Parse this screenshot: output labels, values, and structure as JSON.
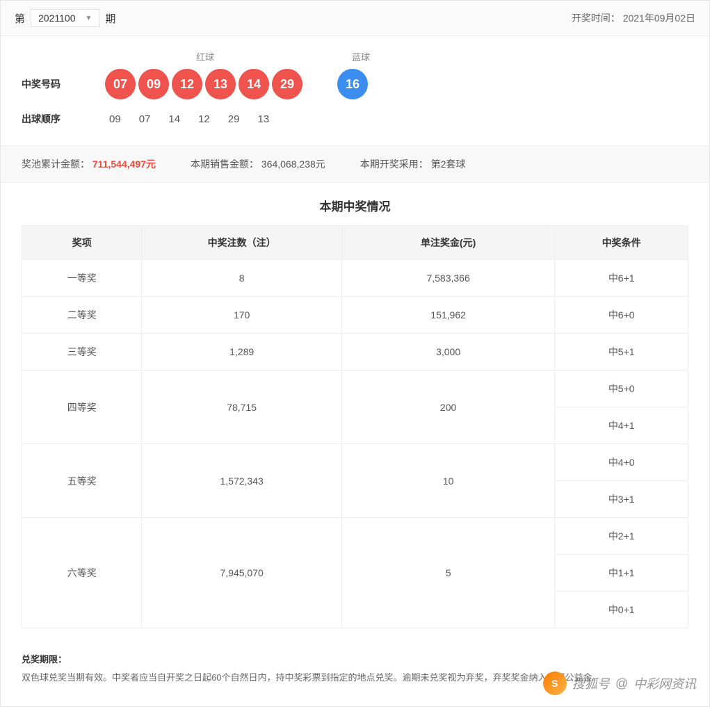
{
  "header": {
    "prefix": "第",
    "period": "2021100",
    "suffix": "期",
    "draw_time_label": "开奖时间：",
    "draw_time_value": "2021年09月02日"
  },
  "labels": {
    "red_balls": "红球",
    "blue_ball": "蓝球",
    "winning_numbers": "中奖号码",
    "draw_order": "出球顺序"
  },
  "red_balls": [
    "07",
    "09",
    "12",
    "13",
    "14",
    "29"
  ],
  "blue_ball": "16",
  "draw_order": [
    "09",
    "07",
    "14",
    "12",
    "29",
    "13"
  ],
  "colors": {
    "red_ball": "#f0524d",
    "blue_ball": "#3b8ef0",
    "pool_text": "#e74c3c",
    "border": "#eeeeee",
    "header_bg": "#fafafa",
    "stats_bg": "#f8f8f8",
    "th_bg": "#f5f5f5"
  },
  "stats": {
    "pool_label": "奖池累计金额：",
    "pool_value": "711,544,497元",
    "sales_label": "本期销售金额：",
    "sales_value": "364,068,238元",
    "ballset_label": "本期开奖采用：",
    "ballset_value": "第2套球"
  },
  "table": {
    "title": "本期中奖情况",
    "columns": [
      "奖项",
      "中奖注数（注）",
      "单注奖金(元)",
      "中奖条件"
    ],
    "col_widths": [
      "18%",
      "30%",
      "32%",
      "20%"
    ],
    "rows": [
      {
        "rank": "一等奖",
        "count": "8",
        "amount": "7,583,366",
        "conditions": [
          "中6+1"
        ]
      },
      {
        "rank": "二等奖",
        "count": "170",
        "amount": "151,962",
        "conditions": [
          "中6+0"
        ]
      },
      {
        "rank": "三等奖",
        "count": "1,289",
        "amount": "3,000",
        "conditions": [
          "中5+1"
        ]
      },
      {
        "rank": "四等奖",
        "count": "78,715",
        "amount": "200",
        "conditions": [
          "中5+0",
          "中4+1"
        ]
      },
      {
        "rank": "五等奖",
        "count": "1,572,343",
        "amount": "10",
        "conditions": [
          "中4+0",
          "中3+1"
        ]
      },
      {
        "rank": "六等奖",
        "count": "7,945,070",
        "amount": "5",
        "conditions": [
          "中2+1",
          "中1+1",
          "中0+1"
        ]
      }
    ]
  },
  "footnote": {
    "title": "兑奖期限：",
    "text": "双色球兑奖当期有效。中奖者应当自开奖之日起60个自然日内，持中奖彩票到指定的地点兑奖。逾期未兑奖视为弃奖，弃奖奖金纳入彩票公益金。"
  },
  "watermark": {
    "prefix": "搜狐号",
    "at": "@",
    "name": "中彩网资讯",
    "logo_text": "S"
  }
}
